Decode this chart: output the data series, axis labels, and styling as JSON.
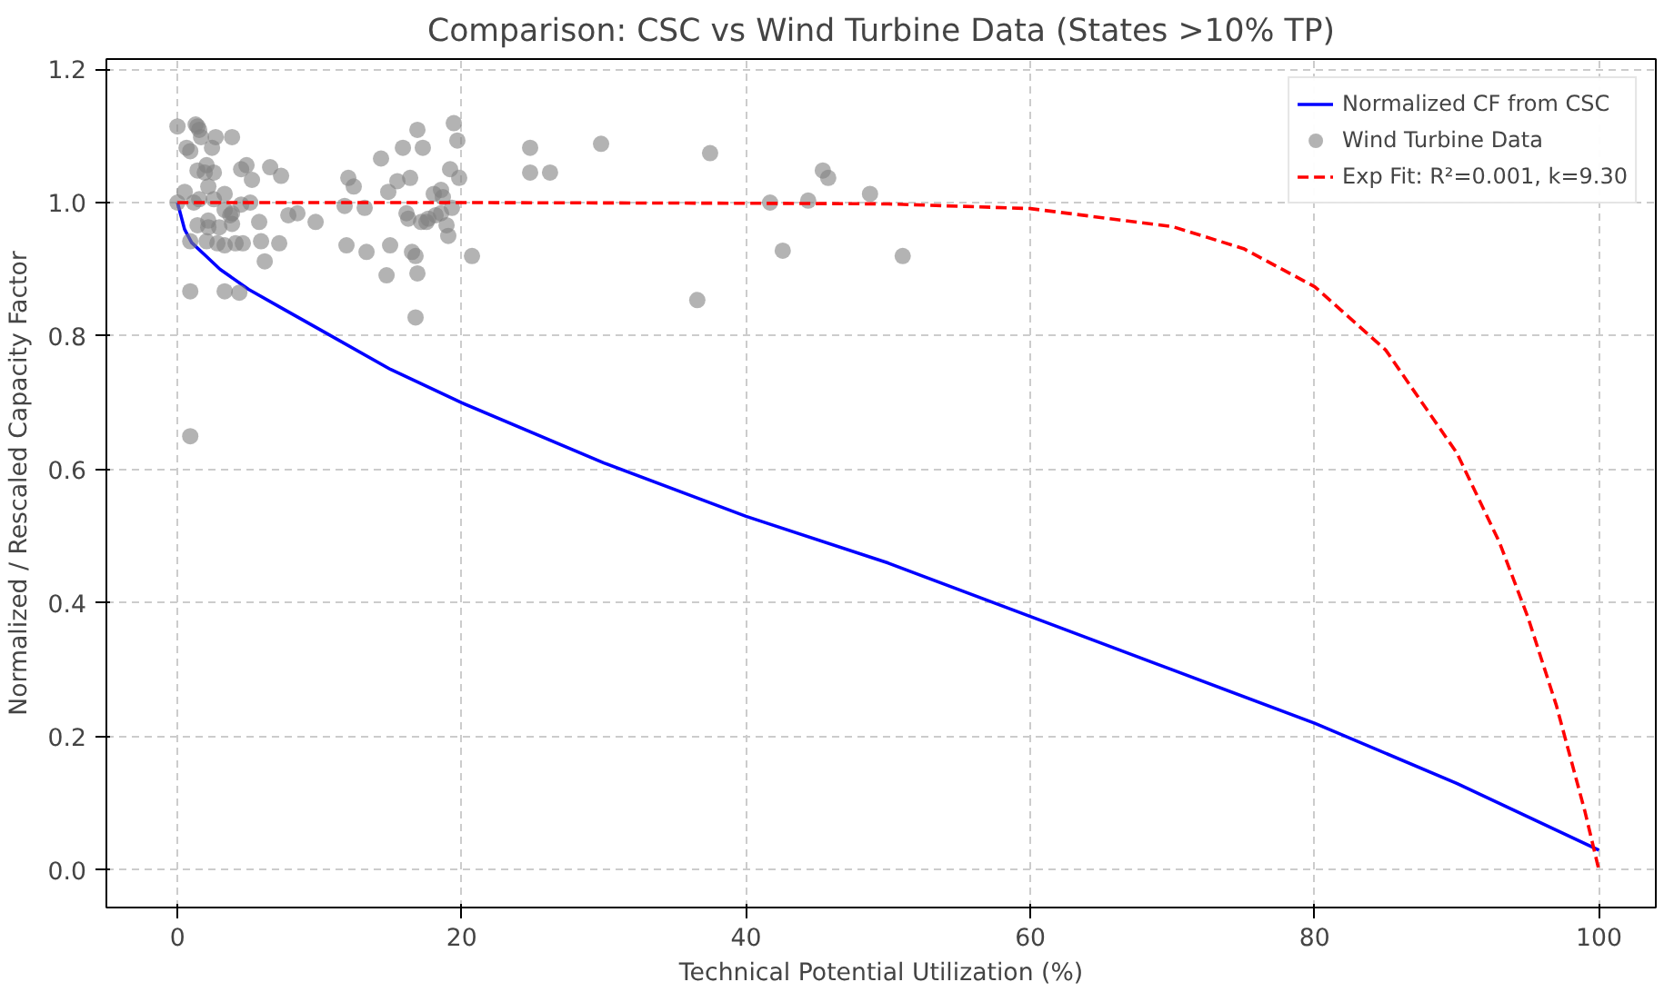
{
  "chart_data": {
    "type": "line",
    "title": "Comparison: CSC vs Wind Turbine Data (States >10% TP)",
    "xlabel": "Technical Potential Utilization (%)",
    "ylabel": "Normalized / Rescaled Capacity Factor",
    "xlim": [
      -5,
      104
    ],
    "ylim": [
      -0.056,
      1.215
    ],
    "xticks": [
      0,
      20,
      40,
      60,
      80,
      100
    ],
    "yticks": [
      {
        "value": 0,
        "label": "0.0"
      },
      {
        "value": 0.2,
        "label": "0.2"
      },
      {
        "value": 0.4,
        "label": "0.4"
      },
      {
        "value": 0.6,
        "label": "0.6"
      },
      {
        "value": 0.8,
        "label": "0.8"
      },
      {
        "value": 1.0,
        "label": "1.0"
      },
      {
        "value": 1.2,
        "label": "1.2"
      }
    ],
    "grid": true,
    "legend": "top right",
    "series": [
      {
        "name": "Normalized CF from CSC",
        "color": "#0000ff",
        "line_style": "solid",
        "x": [
          0,
          0.5,
          1,
          2,
          3,
          5,
          7.5,
          10,
          15,
          20,
          30,
          40,
          50,
          60,
          70,
          80,
          90,
          100
        ],
        "values": [
          1.0,
          0.96,
          0.94,
          0.92,
          0.9,
          0.87,
          0.84,
          0.81,
          0.75,
          0.7,
          0.61,
          0.53,
          0.46,
          0.38,
          0.3,
          0.22,
          0.13,
          0.03
        ]
      },
      {
        "name": "Wind Turbine Data",
        "type": "scatter",
        "color": "#808080",
        "marker": "circle",
        "x": [
          0,
          1.28,
          1.41,
          1.53,
          1.66,
          0.64,
          0.9,
          2.69,
          2.43,
          3.84,
          2.05,
          1.41,
          1.92,
          2.56,
          4.86,
          4.48,
          6.52,
          5.24,
          7.29,
          2.17,
          2.56,
          0.51,
          0,
          1.15,
          1.53,
          3.32,
          3.32,
          3.84,
          5.12,
          4.48,
          3.71,
          2.17,
          1.41,
          2.94,
          3.84,
          5.75,
          0.9,
          2.17,
          2.05,
          2.81,
          3.32,
          4.09,
          4.6,
          5.88,
          0.9,
          3.32,
          4.35,
          6.14,
          7.16,
          7.8,
          9.72,
          8.44,
          12.02,
          11.76,
          12.4,
          13.17,
          11.89,
          13.3,
          14.32,
          15.86,
          15.47,
          14.83,
          16.88,
          17.26,
          16.37,
          18.16,
          16.11,
          16.24,
          18.03,
          18.54,
          18.67,
          17.65,
          17.52,
          17.14,
          16.75,
          14.71,
          16.5,
          16.88,
          14.96,
          18.54,
          19.31,
          18.93,
          19.05,
          19.18,
          19.44,
          19.69,
          19.82,
          20.72,
          16.75,
          0.9,
          24.81,
          24.81,
          26.21,
          29.8,
          37.47,
          36.57,
          41.69,
          42.58,
          44.37,
          45.4,
          45.78,
          48.72,
          51.02
        ],
        "values": [
          1.114,
          1.117,
          1.114,
          1.109,
          1.098,
          1.082,
          1.077,
          1.098,
          1.082,
          1.098,
          1.056,
          1.048,
          1.045,
          1.045,
          1.056,
          1.05,
          1.053,
          1.034,
          1.04,
          1.024,
          1.005,
          1.016,
          1.0,
          1.0,
          1.005,
          1.013,
          0.989,
          0.984,
          1.0,
          0.997,
          0.981,
          0.973,
          0.966,
          0.963,
          0.968,
          0.971,
          0.942,
          0.963,
          0.942,
          0.939,
          0.936,
          0.939,
          0.939,
          0.942,
          0.867,
          0.867,
          0.865,
          0.912,
          0.939,
          0.981,
          0.971,
          0.984,
          1.037,
          0.995,
          1.024,
          0.992,
          0.936,
          0.926,
          1.066,
          1.082,
          1.032,
          1.016,
          1.109,
          1.082,
          1.037,
          0.981,
          0.984,
          0.976,
          1.013,
          1.019,
          1.008,
          0.976,
          0.971,
          0.971,
          0.92,
          0.891,
          0.926,
          0.894,
          0.936,
          0.984,
          0.992,
          0.966,
          0.95,
          1.05,
          1.119,
          1.093,
          1.037,
          0.92,
          0.828,
          0.65,
          1.082,
          1.045,
          1.045,
          1.088,
          1.074,
          0.854,
          1.0,
          0.928,
          1.003,
          1.048,
          1.037,
          1.013,
          0.92
        ]
      },
      {
        "name": "Exp Fit: R²=0.001, k=9.30",
        "color": "#ff0000",
        "line_style": "dashed",
        "x": [
          0,
          20,
          40,
          50,
          60,
          70,
          75,
          80,
          85,
          90,
          93,
          95,
          97,
          99,
          100
        ],
        "values": [
          1.0,
          1.0,
          0.999,
          0.998,
          0.991,
          0.964,
          0.931,
          0.874,
          0.779,
          0.625,
          0.491,
          0.379,
          0.247,
          0.089,
          0.0
        ]
      }
    ]
  }
}
